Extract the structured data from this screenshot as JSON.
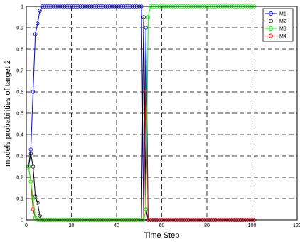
{
  "chart_data": {
    "type": "line",
    "xlabel": "Time Step",
    "ylabel": "models probabilities of target 2",
    "xlim": [
      0,
      120
    ],
    "ylim": [
      0,
      1
    ],
    "x_ticks": [
      "0",
      "20",
      "40",
      "60",
      "80",
      "100",
      "120"
    ],
    "y_ticks": [
      "0",
      "0.1",
      "0.2",
      "0.3",
      "0.4",
      "0.5",
      "0.6",
      "0.7",
      "0.8",
      "0.9",
      "1"
    ],
    "grid": true,
    "legend_position": "top-right",
    "series": [
      {
        "name": "M1",
        "color": "#0000ff",
        "marker": "circle",
        "points": [
          [
            1,
            0.25
          ],
          [
            2,
            0.33
          ],
          [
            3,
            0.6
          ],
          [
            4,
            0.87
          ],
          [
            5,
            0.92
          ],
          [
            6,
            0.98
          ],
          [
            7,
            1.0
          ],
          [
            51,
            1.0
          ],
          [
            52,
            0.0
          ],
          [
            53,
            0.9
          ],
          [
            54,
            0.0
          ],
          [
            55,
            0.0
          ],
          [
            101,
            0.0
          ]
        ]
      },
      {
        "name": "M2",
        "color": "#000000",
        "marker": "circle",
        "points": [
          [
            1,
            0.25
          ],
          [
            2,
            0.31
          ],
          [
            3,
            0.25
          ],
          [
            4,
            0.11
          ],
          [
            5,
            0.08
          ],
          [
            6,
            0.02
          ],
          [
            7,
            0.0
          ],
          [
            51,
            0.0
          ],
          [
            52,
            0.95
          ],
          [
            53,
            0.05
          ],
          [
            54,
            0.0
          ],
          [
            101,
            0.0
          ]
        ]
      },
      {
        "name": "M3",
        "color": "#00ff00",
        "marker": "circle",
        "points": [
          [
            1,
            0.25
          ],
          [
            2,
            0.18
          ],
          [
            3,
            0.1
          ],
          [
            4,
            0.01
          ],
          [
            5,
            0.0
          ],
          [
            52,
            0.0
          ],
          [
            53,
            0.05
          ],
          [
            54,
            0.95
          ],
          [
            55,
            1.0
          ],
          [
            101,
            1.0
          ]
        ]
      },
      {
        "name": "M4",
        "color": "#ff0000",
        "marker": "circle",
        "points": [
          [
            1,
            0.25
          ],
          [
            2,
            0.18
          ],
          [
            3,
            0.05
          ],
          [
            4,
            0.01
          ],
          [
            5,
            0.0
          ],
          [
            52,
            0.0
          ],
          [
            53,
            0.6
          ],
          [
            54,
            0.0
          ],
          [
            101,
            0.0
          ]
        ]
      }
    ]
  }
}
